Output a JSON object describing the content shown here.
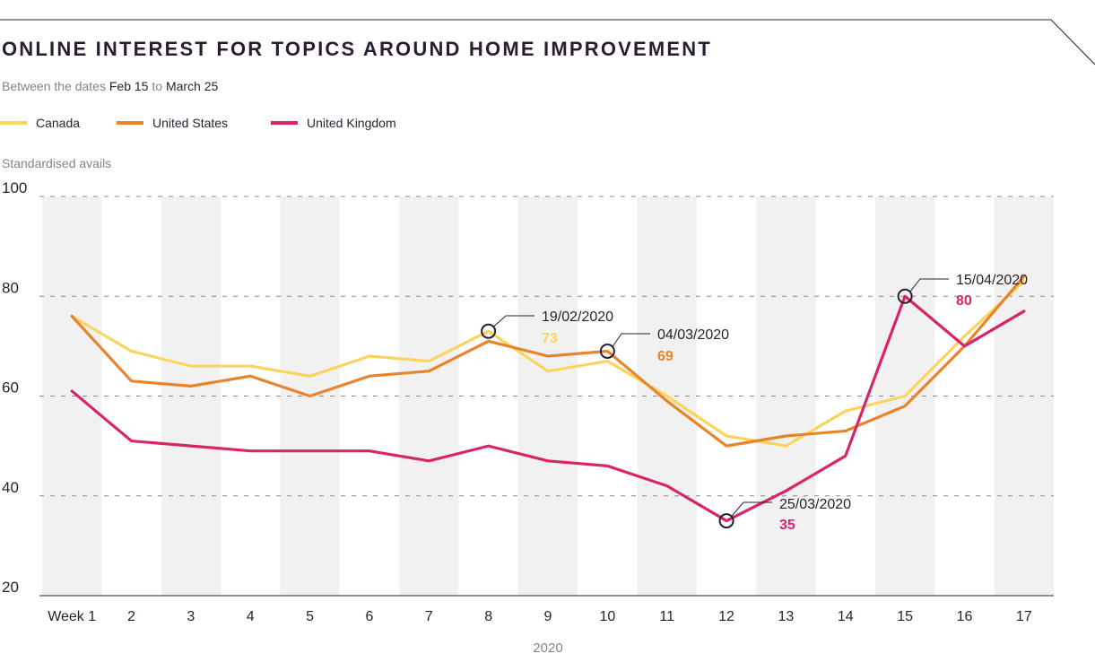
{
  "header": {
    "title": "ONLINE INTEREST FOR TOPICS AROUND HOME IMPROVEMENT",
    "subtitle_prefix": "Between the dates",
    "subtitle_start": "Feb 15",
    "subtitle_mid": "to",
    "subtitle_end": "March 25"
  },
  "colors": {
    "canada": "#f9d55f",
    "united_states": "#e8842a",
    "united_kingdom": "#d9246a",
    "band": "#f2f1f1",
    "grid": "#8a8a8a",
    "axis": "#2a1e2e"
  },
  "chart_data": {
    "type": "line",
    "title": "ONLINE INTEREST FOR TOPICS AROUND HOME IMPROVEMENT",
    "subtitle": "Between the dates Feb 15 to March 25",
    "ylabel": "Standardised avails",
    "xlabel": "2020",
    "ylim": [
      20,
      100
    ],
    "yticks": [
      20,
      40,
      60,
      80,
      100
    ],
    "grid": true,
    "legend_position": "top-left",
    "categories": [
      "Week 1",
      "2",
      "3",
      "4",
      "5",
      "6",
      "7",
      "8",
      "9",
      "10",
      "11",
      "12",
      "13",
      "14",
      "15",
      "16",
      "17"
    ],
    "series": [
      {
        "name": "Canada",
        "color": "#f9d55f",
        "values": [
          76,
          69,
          66,
          66,
          64,
          68,
          67,
          73,
          65,
          67,
          60,
          52,
          50,
          57,
          60,
          72,
          83
        ]
      },
      {
        "name": "United States",
        "color": "#e8842a",
        "values": [
          76,
          63,
          62,
          64,
          60,
          64,
          65,
          71,
          68,
          69,
          59,
          50,
          52,
          53,
          58,
          70,
          84
        ]
      },
      {
        "name": "United Kingdom",
        "color": "#d9246a",
        "values": [
          61,
          51,
          50,
          49,
          49,
          49,
          47,
          50,
          47,
          46,
          42,
          35,
          41,
          48,
          80,
          70,
          77
        ]
      }
    ],
    "annotations": [
      {
        "date": "19/02/2020",
        "value": "73",
        "series": "Canada",
        "category": "8"
      },
      {
        "date": "04/03/2020",
        "value": "69",
        "series": "United States",
        "category": "10"
      },
      {
        "date": "25/03/2020",
        "value": "35",
        "series": "United Kingdom",
        "category": "12"
      },
      {
        "date": "15/04/2020",
        "value": "80",
        "series": "United Kingdom",
        "category": "15"
      }
    ]
  }
}
